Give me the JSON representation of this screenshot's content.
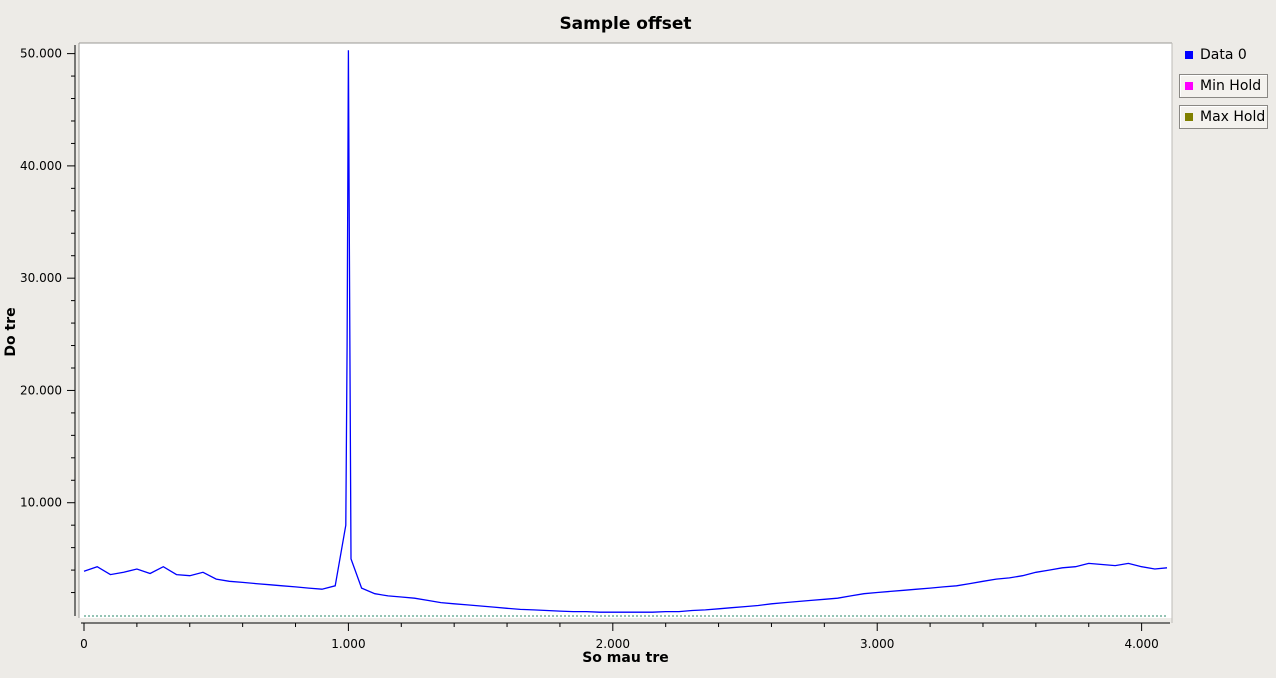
{
  "chart_data": {
    "type": "line",
    "title": "Sample offset",
    "xlabel": "So mau tre",
    "ylabel": "Do tre",
    "xlim": [
      0,
      4096
    ],
    "ylim": [
      0,
      50500
    ],
    "x_ticks": [
      0,
      1000,
      2000,
      3000,
      4000
    ],
    "x_tick_labels": [
      "0",
      "1.000",
      "2.000",
      "3.000",
      "4.000"
    ],
    "y_ticks": [
      10000,
      20000,
      30000,
      40000,
      50000
    ],
    "y_tick_labels": [
      "10.000",
      "20.000",
      "30.000",
      "40.000",
      "50.000"
    ],
    "grid": false,
    "legend_position": "right",
    "series": [
      {
        "name": "Data 0",
        "color": "#0000ff",
        "x": [
          0,
          50,
          100,
          150,
          200,
          250,
          300,
          350,
          400,
          450,
          500,
          550,
          600,
          650,
          700,
          750,
          800,
          850,
          900,
          950,
          990,
          995,
          1000,
          1005,
          1010,
          1050,
          1100,
          1150,
          1200,
          1250,
          1300,
          1350,
          1400,
          1450,
          1500,
          1550,
          1600,
          1650,
          1700,
          1750,
          1800,
          1850,
          1900,
          1950,
          2000,
          2050,
          2100,
          2150,
          2200,
          2250,
          2300,
          2350,
          2400,
          2450,
          2500,
          2550,
          2600,
          2650,
          2700,
          2750,
          2800,
          2850,
          2900,
          2950,
          3000,
          3050,
          3100,
          3150,
          3200,
          3250,
          3300,
          3350,
          3400,
          3450,
          3500,
          3550,
          3600,
          3650,
          3700,
          3750,
          3800,
          3850,
          3900,
          3950,
          4000,
          4050,
          4096
        ],
        "y": [
          3900,
          4300,
          3600,
          3800,
          4100,
          3700,
          4300,
          3600,
          3500,
          3800,
          3200,
          3000,
          2900,
          2800,
          2700,
          2600,
          2500,
          2400,
          2300,
          2600,
          8000,
          24000,
          50300,
          27000,
          5000,
          2400,
          1900,
          1700,
          1600,
          1500,
          1300,
          1100,
          1000,
          900,
          800,
          700,
          600,
          500,
          450,
          400,
          350,
          300,
          300,
          250,
          250,
          250,
          250,
          250,
          300,
          300,
          400,
          450,
          550,
          650,
          750,
          850,
          1000,
          1100,
          1200,
          1300,
          1400,
          1500,
          1700,
          1900,
          2000,
          2100,
          2200,
          2300,
          2400,
          2500,
          2600,
          2800,
          3000,
          3200,
          3300,
          3500,
          3800,
          4000,
          4200,
          4300,
          4600,
          4500,
          4400,
          4600,
          4300,
          4100,
          4200
        ]
      },
      {
        "name": "Min Hold",
        "color": "#ff00ff"
      },
      {
        "name": "Max Hold",
        "color": "#808000"
      }
    ],
    "baseline_color": "#2a8a6a"
  }
}
